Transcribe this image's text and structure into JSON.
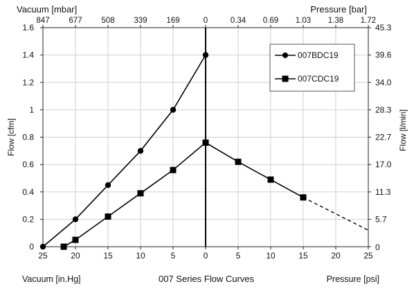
{
  "chart_data": {
    "type": "line",
    "title": "007 Series Flow Curves",
    "labels": {
      "top_left": "Vacuum [mbar]",
      "top_right": "Pressure [bar]",
      "left": "Flow [cfm]",
      "right": "Flow [l/min]",
      "bottom_left": "Vacuum [in.Hg]",
      "bottom_right": "Pressure [psi]"
    },
    "x_axis": {
      "note": "x = pressure in psi (vacuum shown as negative in.Hg, printed without sign)",
      "vacuum_range": [
        25,
        0
      ],
      "pressure_range": [
        0,
        25
      ],
      "ticks": [
        {
          "v": -25,
          "label": "25"
        },
        {
          "v": -20,
          "label": "20"
        },
        {
          "v": -15,
          "label": "15"
        },
        {
          "v": -10,
          "label": "10"
        },
        {
          "v": -5,
          "label": "5"
        },
        {
          "v": 0,
          "label": "0"
        },
        {
          "v": 5,
          "label": "5"
        },
        {
          "v": 10,
          "label": "10"
        },
        {
          "v": 15,
          "label": "15"
        },
        {
          "v": 20,
          "label": "20"
        },
        {
          "v": 25,
          "label": "25"
        }
      ]
    },
    "top_axis_ticks": [
      {
        "v": -25,
        "label": "847"
      },
      {
        "v": -20,
        "label": "677"
      },
      {
        "v": -15,
        "label": "508"
      },
      {
        "v": -10,
        "label": "339"
      },
      {
        "v": -5,
        "label": "169"
      },
      {
        "v": 0,
        "label": "0"
      },
      {
        "v": 5,
        "label": "0.34"
      },
      {
        "v": 10,
        "label": "0.69"
      },
      {
        "v": 15,
        "label": "1.03"
      },
      {
        "v": 20,
        "label": "1.38"
      },
      {
        "v": 25,
        "label": "1.72"
      }
    ],
    "y_axis": {
      "ylim": [
        0,
        1.6
      ],
      "ticks": [
        {
          "v": 0,
          "label": "0"
        },
        {
          "v": 0.2,
          "label": "0.2"
        },
        {
          "v": 0.4,
          "label": "0.4"
        },
        {
          "v": 0.6,
          "label": "0.6"
        },
        {
          "v": 0.8,
          "label": "0.8"
        },
        {
          "v": 1.0,
          "label": "1"
        },
        {
          "v": 1.2,
          "label": "1.2"
        },
        {
          "v": 1.4,
          "label": "1.4"
        },
        {
          "v": 1.6,
          "label": "1.6"
        }
      ]
    },
    "right_axis_ticks": [
      {
        "v": 0,
        "label": "0"
      },
      {
        "v": 0.2,
        "label": "5.7"
      },
      {
        "v": 0.4,
        "label": "11.3"
      },
      {
        "v": 0.6,
        "label": "17.0"
      },
      {
        "v": 0.8,
        "label": "22.7"
      },
      {
        "v": 1.0,
        "label": "28.3"
      },
      {
        "v": 1.2,
        "label": "34.0"
      },
      {
        "v": 1.4,
        "label": "39.6"
      },
      {
        "v": 1.6,
        "label": "45.3"
      }
    ],
    "grid": true,
    "legend": "top-right",
    "series": [
      {
        "name": "007BDC19",
        "marker": "circle",
        "points": [
          [
            -25,
            0
          ],
          [
            -20,
            0.2
          ],
          [
            -15,
            0.45
          ],
          [
            -10,
            0.7
          ],
          [
            -5,
            1.0
          ],
          [
            0,
            1.4
          ]
        ]
      },
      {
        "name": "007CDC19",
        "marker": "square",
        "points": [
          [
            -21.8,
            0
          ],
          [
            -20,
            0.05
          ],
          [
            -15,
            0.22
          ],
          [
            -10,
            0.39
          ],
          [
            -5,
            0.56
          ],
          [
            0,
            0.76
          ],
          [
            5,
            0.62
          ],
          [
            10,
            0.49
          ],
          [
            15,
            0.36
          ]
        ],
        "dashed_extension": [
          [
            15,
            0.36
          ],
          [
            25,
            0.12
          ]
        ]
      }
    ],
    "zero_line_at": 0
  }
}
